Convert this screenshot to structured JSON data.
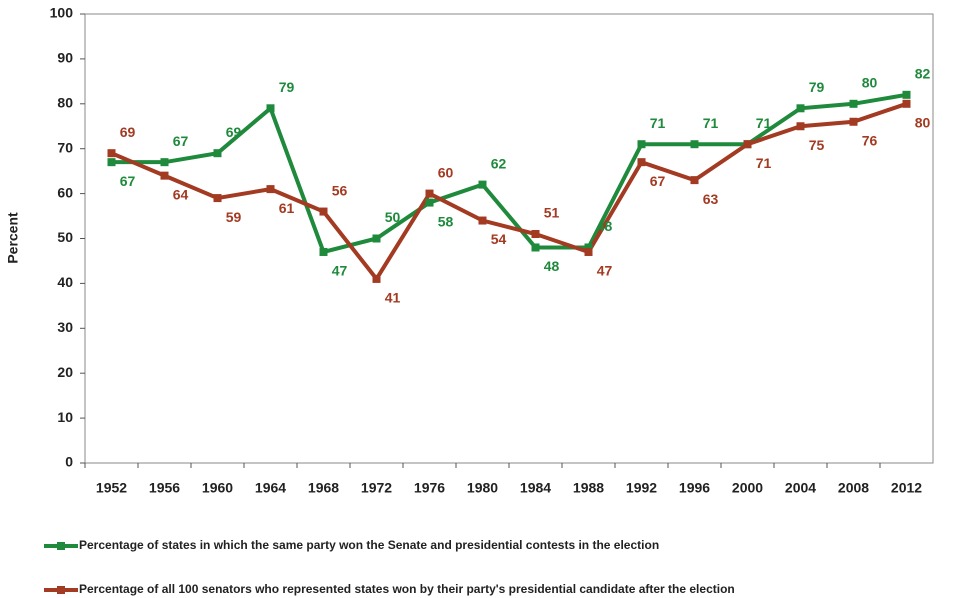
{
  "chart_data": {
    "type": "line",
    "y_label": "Percent",
    "categories": [
      "1952",
      "1956",
      "1960",
      "1964",
      "1968",
      "1972",
      "1976",
      "1980",
      "1984",
      "1988",
      "1992",
      "1996",
      "2000",
      "2004",
      "2008",
      "2012"
    ],
    "series": [
      {
        "name": "Percentage of states in which the same party won the Senate and presidential contests in the election",
        "color": "#1f8a3c",
        "values": [
          67,
          67,
          69,
          79,
          47,
          50,
          58,
          62,
          48,
          48,
          71,
          71,
          71,
          79,
          80,
          82
        ]
      },
      {
        "name": "Percentage of all 100 senators who represented states won by their party's presidential candidate after the election",
        "color": "#a33a22",
        "values": [
          69,
          64,
          59,
          61,
          56,
          41,
          60,
          54,
          51,
          47,
          67,
          63,
          71,
          75,
          76,
          80
        ]
      }
    ],
    "ylim": [
      0,
      100
    ],
    "yticks": [
      0,
      10,
      20,
      30,
      40,
      50,
      60,
      70,
      80,
      90,
      100
    ],
    "grid": false
  }
}
